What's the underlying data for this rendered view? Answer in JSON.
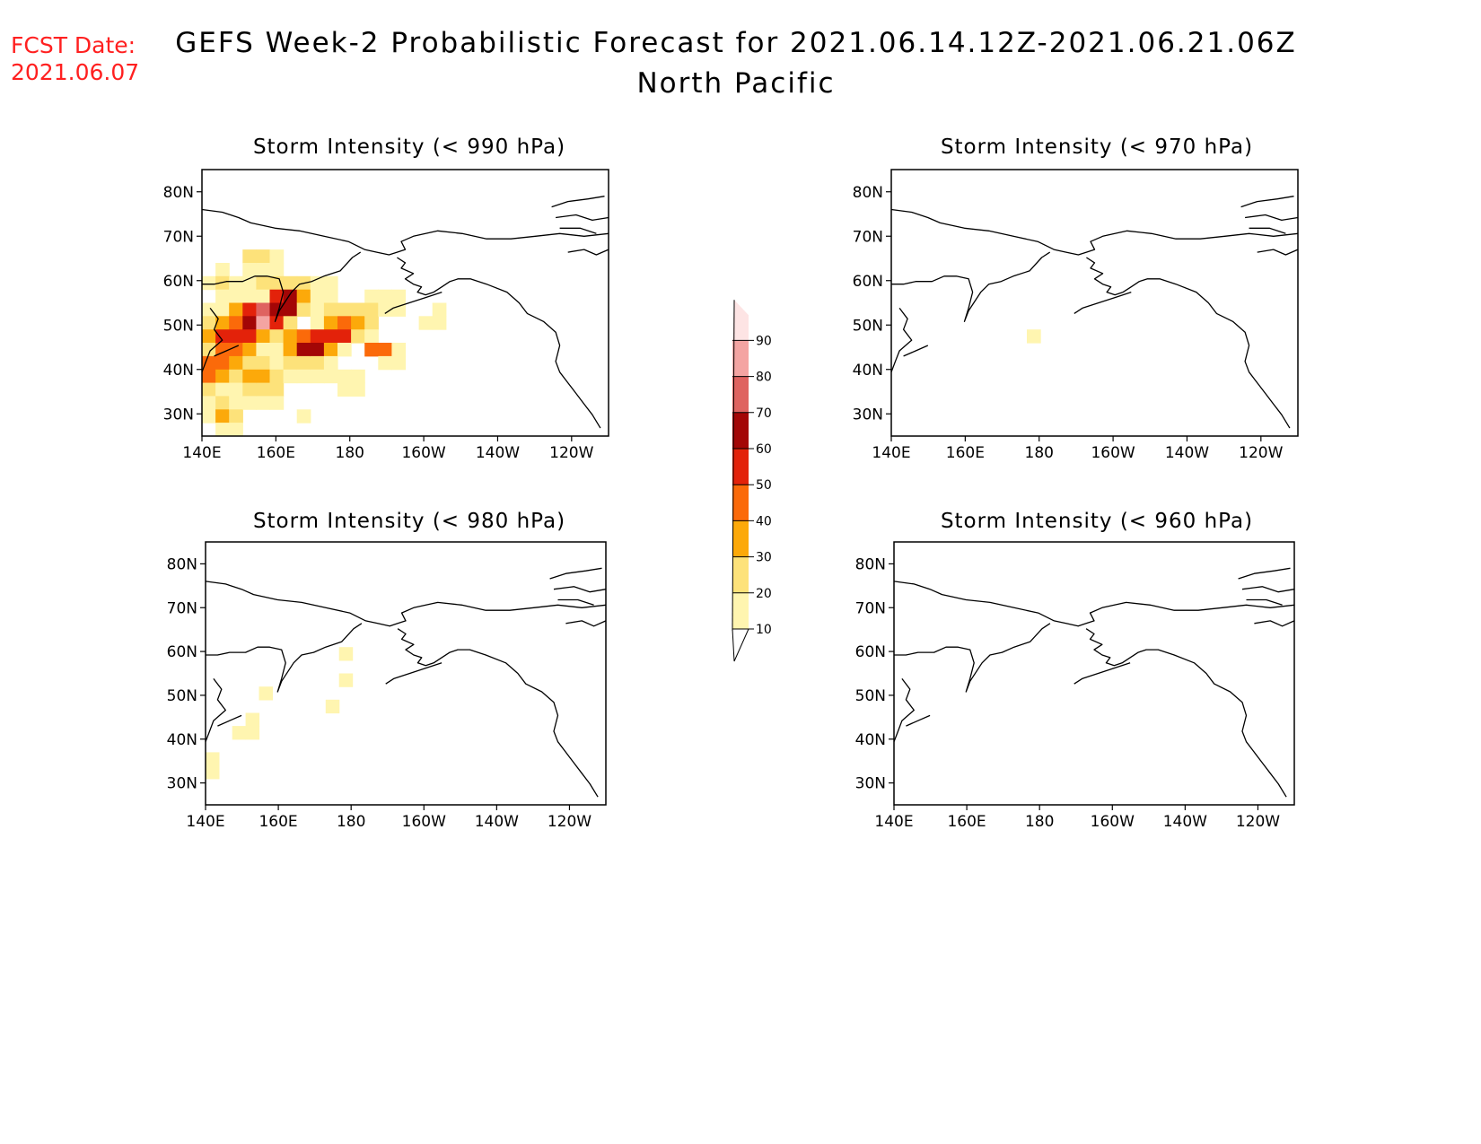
{
  "header": {
    "fcst_label": "FCST Date:",
    "fcst_date": "2021.06.07",
    "title_line1": "GEFS Week-2 Probabilistic Forecast for 2021.06.14.12Z-2021.06.21.06Z",
    "title_line2": "North Pacific"
  },
  "axes": {
    "lat_ticks": [
      "80N",
      "70N",
      "60N",
      "50N",
      "40N",
      "30N"
    ],
    "lon_ticks": [
      "140E",
      "160E",
      "180",
      "160W",
      "140W",
      "120W"
    ]
  },
  "panels": [
    {
      "id": "p990",
      "title": "Storm Intensity (< 990 hPa)",
      "activity": "high"
    },
    {
      "id": "p970",
      "title": "Storm Intensity (< 970 hPa)",
      "activity": "very-low"
    },
    {
      "id": "p980",
      "title": "Storm Intensity (< 980 hPa)",
      "activity": "low"
    },
    {
      "id": "p960",
      "title": "Storm Intensity (< 960 hPa)",
      "activity": "none"
    }
  ],
  "colorbar": {
    "levels": [
      "10",
      "20",
      "30",
      "40",
      "50",
      "60",
      "70",
      "80",
      "90"
    ],
    "colors": [
      "#fff5b0",
      "#fde27a",
      "#fca90a",
      "#fb6a0a",
      "#e3220a",
      "#a30606",
      "#df6360",
      "#f4a4a2",
      "#fde4e4"
    ]
  },
  "chart_data": {
    "type": "heatmap",
    "units": "probability (%)",
    "lat_range": [
      25,
      85
    ],
    "lon_range_deg_east": [
      140,
      250
    ],
    "panels": [
      {
        "title": "Storm Intensity (< 990 hPa)",
        "max_probability": 90,
        "main_region": "western North Pacific, 30N-60N, 140E-165W"
      },
      {
        "title": "Storm Intensity (< 970 hPa)",
        "max_probability": 20,
        "main_region": "isolated points near 45N-50N, 175E-180"
      },
      {
        "title": "Storm Intensity (< 980 hPa)",
        "max_probability": 20,
        "main_region": "scattered 30N-60N, 140E-180"
      },
      {
        "title": "Storm Intensity (< 960 hPa)",
        "max_probability": 0,
        "main_region": ""
      }
    ]
  }
}
